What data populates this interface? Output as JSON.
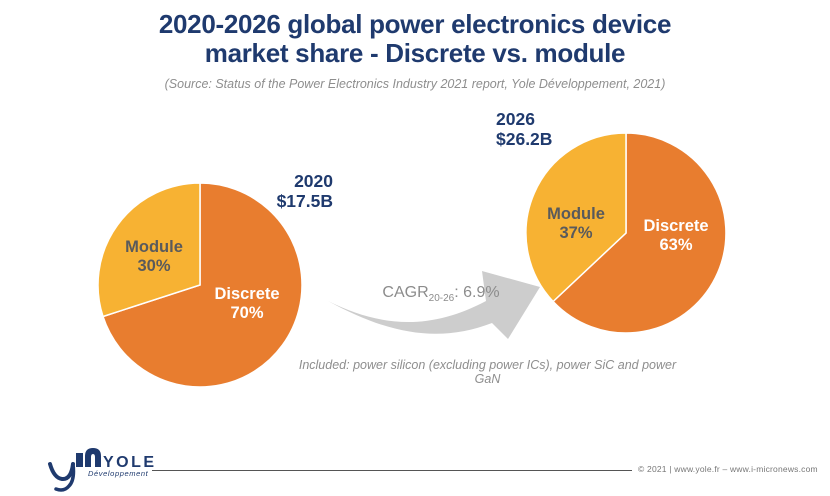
{
  "title": {
    "line1": "2020-2026 global power electronics device",
    "line2": "market share - Discrete vs. module"
  },
  "source_note": "(Source: Status of the Power Electronics Industry 2021 report, Yole Développement, 2021)",
  "chart_data": [
    {
      "type": "pie",
      "year": "2020",
      "total_label": "$17.5B",
      "start_angle_deg": 0,
      "direction": "clockwise",
      "slices": [
        {
          "label": "Discrete",
          "value": 70,
          "pct": "70%",
          "color": "#E87D2F",
          "text_color": "#FFFFFF"
        },
        {
          "label": "Module",
          "value": 30,
          "pct": "30%",
          "color": "#F7B233",
          "text_color": "#595A5C"
        }
      ]
    },
    {
      "type": "pie",
      "year": "2026",
      "total_label": "$26.2B",
      "start_angle_deg": 0,
      "direction": "clockwise",
      "slices": [
        {
          "label": "Discrete",
          "value": 63,
          "pct": "63%",
          "color": "#E87D2F",
          "text_color": "#FFFFFF"
        },
        {
          "label": "Module",
          "value": 37,
          "pct": "37%",
          "color": "#F7B233",
          "text_color": "#595A5C"
        }
      ]
    }
  ],
  "cagr": {
    "prefix": "CAGR",
    "subscript": "20-26",
    "rest": ": 6.9%"
  },
  "included_note": "Included: power silicon (excluding power ICs), power SiC and power GaN",
  "footer": {
    "logo_name": "YOLE",
    "logo_sub": "Développement",
    "copyright": "© 2021 | www.yole.fr – www.i-micronews.com"
  },
  "colors": {
    "navy": "#1F3A6E",
    "orange": "#E87D2F",
    "yellow": "#F7B233",
    "module_text": "#595A5C",
    "note_gray": "#8E8E8E",
    "arrow_gray": "#CDCDCD",
    "rule_gray": "#555555"
  }
}
